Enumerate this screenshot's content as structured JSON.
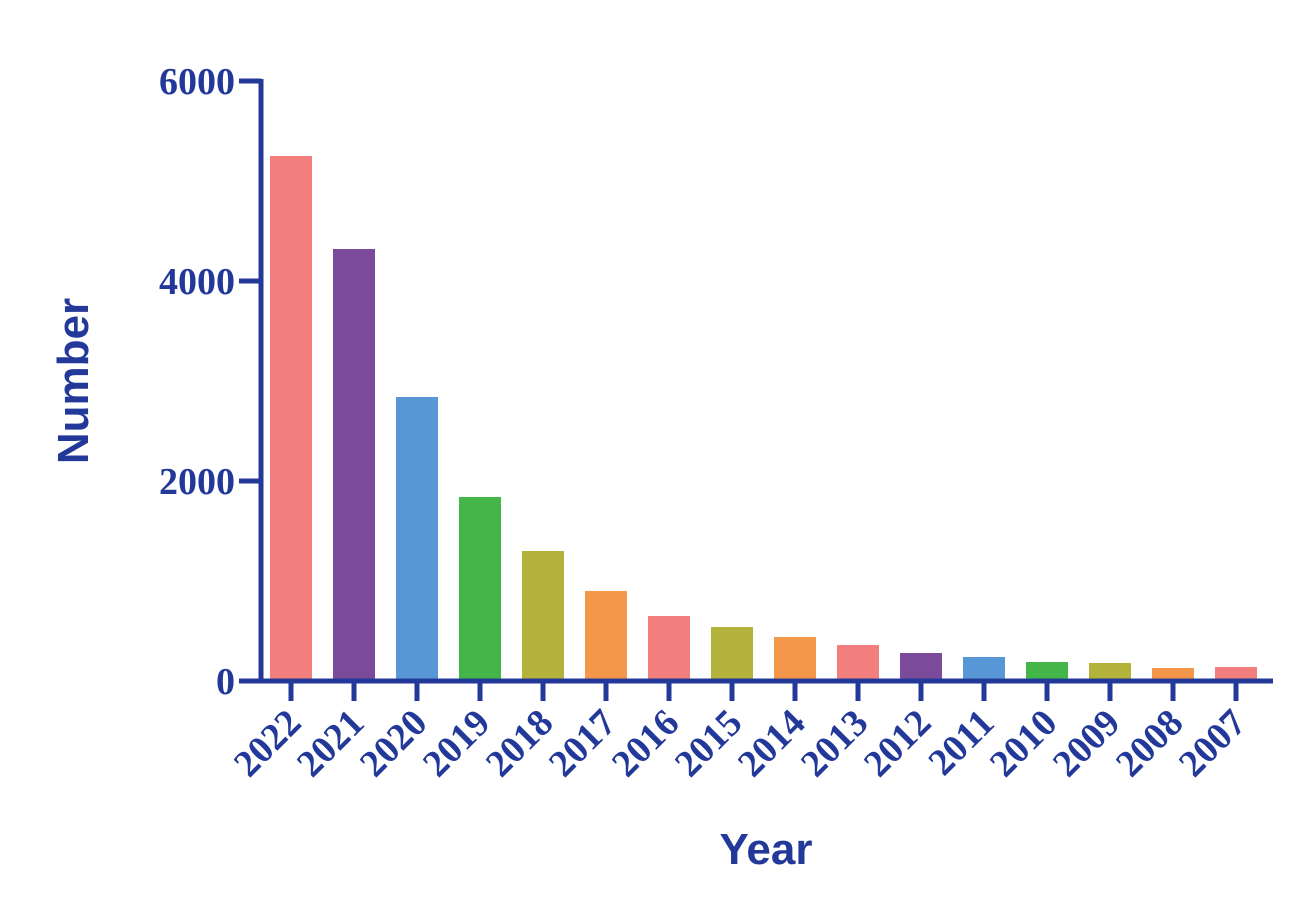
{
  "chart_data": {
    "type": "bar",
    "title": "",
    "xlabel": "Year",
    "ylabel": "Number",
    "categories": [
      "2022",
      "2021",
      "2020",
      "2019",
      "2018",
      "2017",
      "2016",
      "2015",
      "2014",
      "2013",
      "2012",
      "2011",
      "2010",
      "2009",
      "2008",
      "2007"
    ],
    "values": [
      5250,
      4320,
      2840,
      1840,
      1300,
      900,
      650,
      540,
      440,
      360,
      280,
      240,
      190,
      180,
      130,
      140
    ],
    "bar_colors": [
      "#f27e7e",
      "#7b4a9b",
      "#5897d5",
      "#44b649",
      "#b3b33b",
      "#f5974a",
      "#f27e7e",
      "#b3b33b",
      "#f5974a",
      "#f27e7e",
      "#7b4a9b",
      "#5897d5",
      "#44b649",
      "#b3b33b",
      "#f5974a",
      "#f27e7e"
    ],
    "ylim": [
      0,
      6000
    ],
    "yticks": [
      0,
      2000,
      4000,
      6000
    ],
    "ytick_labels": [
      "0",
      "2000",
      "4000",
      "6000"
    ],
    "grid": false,
    "legend": "none",
    "axis_color": "#23399a"
  }
}
